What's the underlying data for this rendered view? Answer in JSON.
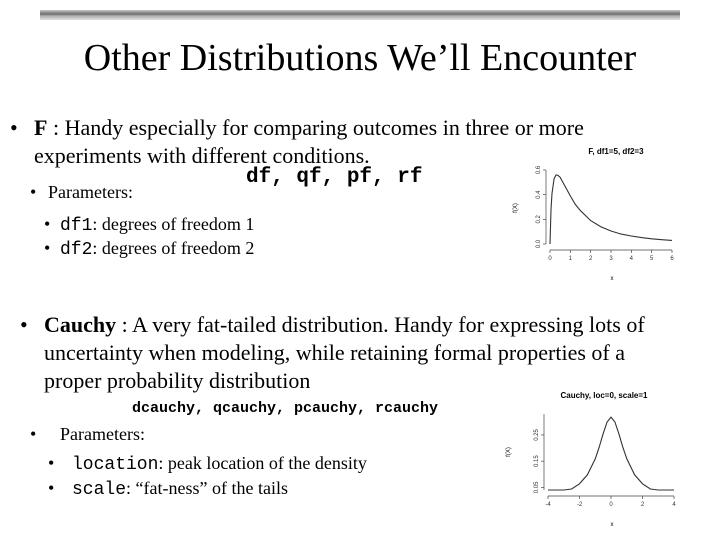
{
  "slide": {
    "title": "Other  Distributions We’ll Encounter",
    "bullet": "•",
    "f_section": {
      "name": "F",
      "description_line1": " : Handy especially for comparing outcomes in three or more",
      "description_line2": "experiments with different conditions.",
      "functions": "df, qf, pf, rf",
      "parameters_label": "Parameters:",
      "params": [
        {
          "name": "df1",
          "desc": ": degrees of freedom 1"
        },
        {
          "name": "df2",
          "desc": ": degrees of freedom 2"
        }
      ]
    },
    "cauchy_section": {
      "name": "Cauchy",
      "description_line1": " : A very fat-tailed distribution. Handy for expressing lots of",
      "description_line2": "uncertainty when modeling, while retaining formal properties of a",
      "description_line3": "proper probability distribution",
      "functions": "dcauchy, qcauchy, pcauchy, rcauchy",
      "parameters_label": "Parameters:",
      "params": [
        {
          "name": "location",
          "desc": ": peak location of the density"
        },
        {
          "name": "scale",
          "desc": ": “fat-ness” of the tails"
        }
      ]
    }
  },
  "chart_data": [
    {
      "type": "line",
      "title": "F, df1=5, df2=3",
      "xlabel": "x",
      "ylabel": "f(X)",
      "xlim": [
        0,
        6
      ],
      "ylim": [
        0,
        0.6
      ],
      "x_ticks": [
        "0",
        "1",
        "2",
        "3",
        "4",
        "5",
        "6"
      ],
      "y_ticks": [
        "0.0",
        "0.2",
        "0.4",
        "0.6"
      ],
      "x": [
        0,
        0.05,
        0.1,
        0.2,
        0.3,
        0.4,
        0.5,
        0.6,
        0.8,
        1.0,
        1.25,
        1.5,
        2.0,
        2.5,
        3.0,
        3.5,
        4.0,
        4.5,
        5.0,
        5.5,
        6.0
      ],
      "y": [
        0,
        0.28,
        0.41,
        0.53,
        0.56,
        0.555,
        0.54,
        0.51,
        0.45,
        0.39,
        0.32,
        0.27,
        0.19,
        0.14,
        0.105,
        0.08,
        0.065,
        0.052,
        0.042,
        0.035,
        0.029
      ]
    },
    {
      "type": "line",
      "title": "Cauchy, loc=0, scale=1",
      "xlabel": "x",
      "ylabel": "f(X)",
      "xlim": [
        -4,
        4
      ],
      "ylim": [
        0.04,
        0.33
      ],
      "x_ticks": [
        "-4",
        "-2",
        "0",
        "2",
        "4"
      ],
      "y_ticks": [
        "0.05",
        "0.15",
        "0.25"
      ],
      "x": [
        -4,
        -3.5,
        -3,
        -2.5,
        -2,
        -1.5,
        -1,
        -0.75,
        -0.5,
        -0.25,
        0,
        0.25,
        0.5,
        0.75,
        1,
        1.5,
        2,
        2.5,
        3,
        3.5,
        4
      ],
      "y": [
        0.0187,
        0.0242,
        0.0318,
        0.0439,
        0.0637,
        0.0979,
        0.1592,
        0.2037,
        0.2546,
        0.2996,
        0.3183,
        0.2996,
        0.2546,
        0.2037,
        0.1592,
        0.0979,
        0.0637,
        0.0439,
        0.0318,
        0.0242,
        0.0187
      ]
    }
  ]
}
